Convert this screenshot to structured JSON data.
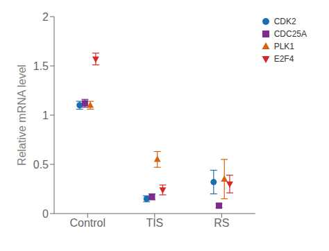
{
  "chart_data": {
    "type": "scatter",
    "categories": [
      "Control",
      "TIS",
      "RS"
    ],
    "y_label": "Relative mRNA level",
    "ylim": [
      0,
      2.0
    ],
    "yticks": [
      0,
      0.5,
      1,
      1.5,
      2
    ],
    "grid": false,
    "legend": "upper right",
    "series": [
      {
        "name": "CDK2",
        "color": "#1a6faf",
        "marker": "circle",
        "values": [
          1.1,
          0.15,
          0.32
        ],
        "yerr": [
          0.04,
          0.03,
          0.12
        ]
      },
      {
        "name": "CDC25A",
        "color": "#7b2d8b",
        "marker": "square",
        "values": [
          1.12,
          0.17,
          0.08
        ],
        "yerr": [
          0.04,
          0.03,
          0.02
        ]
      },
      {
        "name": "PLK1",
        "color": "#d6610a",
        "marker": "triangle-up",
        "values": [
          1.1,
          0.55,
          0.35
        ],
        "yerr": [
          0.04,
          0.08,
          0.2
        ]
      },
      {
        "name": "E2F4",
        "color": "#d62728",
        "marker": "triangle-down",
        "values": [
          1.57,
          0.24,
          0.3
        ],
        "yerr": [
          0.06,
          0.05,
          0.09
        ]
      }
    ]
  }
}
